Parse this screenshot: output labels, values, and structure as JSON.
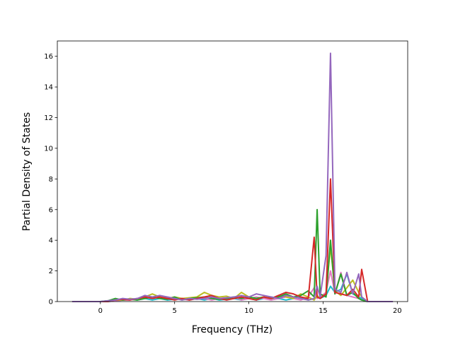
{
  "chart_data": {
    "type": "line",
    "x_label": "Frequency (THz)",
    "y_label": "Partial Density of States",
    "xlim": [
      -2.9,
      20.7
    ],
    "ylim": [
      0,
      17.0
    ],
    "xticks": [
      0,
      5,
      10,
      15,
      20
    ],
    "yticks": [
      0,
      2,
      4,
      6,
      8,
      10,
      12,
      14,
      16
    ],
    "x": [
      -1.9,
      0,
      0.5,
      1,
      1.5,
      2,
      2.5,
      3,
      3.5,
      4,
      4.5,
      5,
      5.5,
      6,
      6.5,
      7,
      7.5,
      8,
      8.5,
      9,
      9.5,
      10,
      10.5,
      11,
      11.5,
      12,
      12.5,
      13,
      13.5,
      14,
      14.4,
      14.6,
      14.8,
      15.2,
      15.5,
      15.8,
      16.2,
      16.6,
      17.0,
      17.4,
      17.6,
      18,
      19.7
    ],
    "series": [
      {
        "color": "#17becf",
        "values": [
          0,
          0,
          0,
          0.05,
          0.1,
          0.15,
          0.1,
          0.2,
          0.1,
          0.2,
          0.1,
          0.15,
          0.2,
          0.1,
          0.2,
          0.1,
          0.2,
          0.1,
          0.15,
          0.2,
          0.1,
          0.2,
          0.1,
          0.2,
          0.3,
          0.2,
          0.1,
          0.2,
          0.3,
          0.1,
          0.2,
          0.3,
          0.2,
          0.4,
          1.0,
          0.6,
          0.8,
          1.8,
          0.5,
          0.3,
          0.2,
          0,
          0
        ]
      },
      {
        "color": "#e377c2",
        "values": [
          0,
          0,
          0,
          0.05,
          0.1,
          0.1,
          0.2,
          0.2,
          0.3,
          0.2,
          0.3,
          0.2,
          0.15,
          0.1,
          0.2,
          0.2,
          0.1,
          0.2,
          0.2,
          0.3,
          0.1,
          0.2,
          0.3,
          0.2,
          0.1,
          0.2,
          0.3,
          0.2,
          0.1,
          0.3,
          0.9,
          0.2,
          0.3,
          0.6,
          2.0,
          0.5,
          1.9,
          0.4,
          0.3,
          0.2,
          0.1,
          0,
          0
        ]
      },
      {
        "color": "#bcbd22",
        "values": [
          0,
          0,
          0,
          0.1,
          0.1,
          0.2,
          0.15,
          0.3,
          0.5,
          0.3,
          0.2,
          0.3,
          0.2,
          0.25,
          0.3,
          0.6,
          0.4,
          0.3,
          0.35,
          0.2,
          0.6,
          0.3,
          0.2,
          0.3,
          0.2,
          0.4,
          0.3,
          0.2,
          0.5,
          0.3,
          0.1,
          0.4,
          0.2,
          0.5,
          3.6,
          0.7,
          0.4,
          0.9,
          1.4,
          0.6,
          0.3,
          0,
          0
        ]
      },
      {
        "color": "#2ca02c",
        "values": [
          0,
          0,
          0.05,
          0.2,
          0.1,
          0.15,
          0.1,
          0.2,
          0.3,
          0.2,
          0.15,
          0.3,
          0.1,
          0.2,
          0.25,
          0.3,
          0.2,
          0.15,
          0.2,
          0.3,
          0.2,
          0.3,
          0.2,
          0.3,
          0.2,
          0.3,
          0.5,
          0.3,
          0.4,
          0.7,
          0.3,
          6.0,
          0.5,
          0.3,
          4.0,
          0.5,
          1.8,
          0.4,
          0.6,
          0.2,
          0.1,
          0,
          0
        ]
      },
      {
        "color": "#d62728",
        "values": [
          0,
          0,
          0,
          0.1,
          0.15,
          0.1,
          0.2,
          0.3,
          0.2,
          0.3,
          0.2,
          0.1,
          0.2,
          0.1,
          0.2,
          0.3,
          0.4,
          0.2,
          0.1,
          0.2,
          0.3,
          0.2,
          0.1,
          0.3,
          0.2,
          0.4,
          0.6,
          0.5,
          0.3,
          0.2,
          4.2,
          0.3,
          0.2,
          0.5,
          8.0,
          0.6,
          0.5,
          0.4,
          0.8,
          0.3,
          2.1,
          0,
          0
        ]
      },
      {
        "color": "#9467bd",
        "values": [
          0,
          0,
          0.05,
          0.1,
          0.2,
          0.15,
          0.2,
          0.4,
          0.3,
          0.4,
          0.3,
          0.2,
          0.1,
          0.2,
          0.15,
          0.2,
          0.3,
          0.2,
          0.25,
          0.3,
          0.4,
          0.3,
          0.5,
          0.4,
          0.3,
          0.2,
          0.4,
          0.3,
          0.2,
          0.1,
          0.2,
          1.0,
          0.3,
          3.0,
          16.2,
          0.8,
          0.6,
          1.9,
          0.5,
          1.8,
          0.3,
          0,
          0
        ]
      }
    ]
  }
}
